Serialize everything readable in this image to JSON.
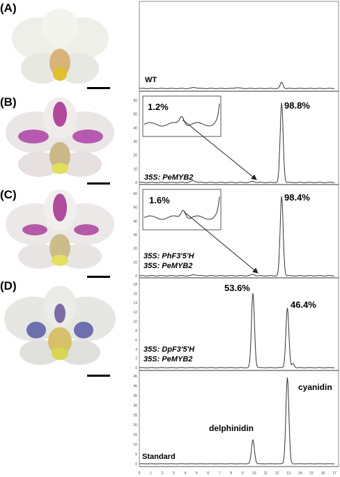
{
  "figure": {
    "panels": [
      {
        "label": "(A)",
        "sample": "WT",
        "sample_line2": "",
        "peaks": []
      },
      {
        "label": "(B)",
        "sample": "35S: PeMYB2",
        "sample_line2": "",
        "inset_pct": "1.2%",
        "peaks": [
          "98.8%"
        ]
      },
      {
        "label": "(C)",
        "sample": "35S: PhF3'5'H",
        "sample_line2": "35S: PeMYB2",
        "inset_pct": "1.6%",
        "peaks": [
          "98.4%"
        ]
      },
      {
        "label": "(D)",
        "sample": "35S: DpF3'5'H",
        "sample_line2": "35S: PeMYB2",
        "peaks": [
          "53.6%",
          "46.4%"
        ]
      },
      {
        "label": "",
        "sample": "Standard",
        "peaks": [
          "delphinidin",
          "cyanidin"
        ]
      }
    ],
    "y_ticks": {
      "B": [
        "60",
        "50",
        "40",
        "30",
        "20",
        "10",
        "0"
      ],
      "C": [
        "60",
        "50",
        "40",
        "30",
        "20",
        "10",
        "0"
      ],
      "D": [
        "18",
        "16",
        "14",
        "12",
        "10",
        "8",
        "6",
        "4",
        "2",
        "0"
      ],
      "E": [
        "45",
        "40",
        "35",
        "30",
        "25",
        "20",
        "15",
        "10",
        "5",
        "0"
      ]
    },
    "x_ticks": [
      "0",
      "1",
      "2",
      "3",
      "4",
      "5",
      "6",
      "7",
      "8",
      "9",
      "10",
      "11",
      "12",
      "13",
      "14",
      "15",
      "16",
      "17"
    ]
  },
  "chart_data": [
    {
      "type": "line",
      "panel": "A",
      "series": [
        {
          "name": "WT",
          "x": [
            0,
            12.4,
            17
          ],
          "y": [
            0,
            1,
            0
          ]
        }
      ]
    },
    {
      "type": "line",
      "panel": "B",
      "ylim": [
        0,
        60
      ],
      "series": [
        {
          "name": "35S: PeMYB2",
          "x": [
            9.9,
            12.4
          ],
          "y": [
            1,
            58
          ]
        }
      ],
      "peak_labels": [
        "1.2%",
        "98.8%"
      ]
    },
    {
      "type": "line",
      "panel": "C",
      "ylim": [
        0,
        60
      ],
      "series": [
        {
          "name": "35S: PhF3'5'H 35S: PeMYB2",
          "x": [
            9.9,
            12.4
          ],
          "y": [
            1,
            58
          ]
        }
      ],
      "peak_labels": [
        "1.6%",
        "98.4%"
      ]
    },
    {
      "type": "line",
      "panel": "D",
      "ylim": [
        0,
        18
      ],
      "series": [
        {
          "name": "35S: DpF3'5'H 35S: PeMYB2",
          "x": [
            9.9,
            12.9
          ],
          "y": [
            16.2,
            13
          ]
        }
      ],
      "peak_labels": [
        "53.6%",
        "46.4%"
      ]
    },
    {
      "type": "line",
      "panel": "Standard",
      "ylim": [
        0,
        45
      ],
      "xlim": [
        0,
        17
      ],
      "series": [
        {
          "name": "Standard",
          "x": [
            9.9,
            12.9
          ],
          "y": [
            12,
            43
          ]
        }
      ],
      "peak_labels": [
        "delphinidin",
        "cyanidin"
      ]
    }
  ]
}
